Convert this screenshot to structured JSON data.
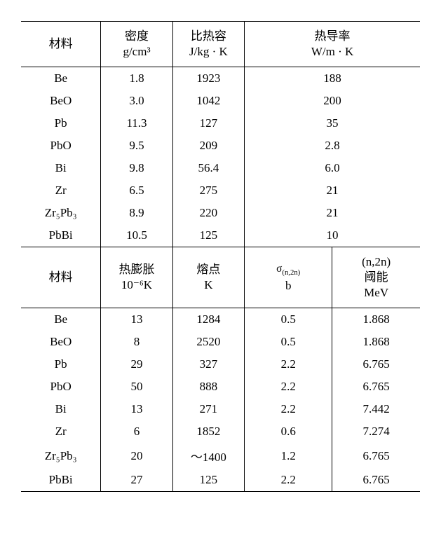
{
  "table1": {
    "headers": {
      "material": "材料",
      "density_l1": "密度",
      "density_l2": "g/cm³",
      "specheat_l1": "比热容",
      "specheat_l2": "J/kg · K",
      "thermcond_l1": "热导率",
      "thermcond_l2": "W/m · K"
    },
    "rows": [
      {
        "m": "Be",
        "c2": "1.8",
        "c3": "1923",
        "c4": "188"
      },
      {
        "m": "BeO",
        "c2": "3.0",
        "c3": "1042",
        "c4": "200"
      },
      {
        "m": "Pb",
        "c2": "11.3",
        "c3": "127",
        "c4": "35"
      },
      {
        "m": "PbO",
        "c2": "9.5",
        "c3": "209",
        "c4": "2.8"
      },
      {
        "m": "Bi",
        "c2": "9.8",
        "c3": "56.4",
        "c4": "6.0"
      },
      {
        "m": "Zr",
        "c2": "6.5",
        "c3": "275",
        "c4": "21"
      },
      {
        "m": "Zr₅Pb₃",
        "c2": "8.9",
        "c3": "220",
        "c4": "21"
      },
      {
        "m": "PbBi",
        "c2": "10.5",
        "c3": "125",
        "c4": "10"
      }
    ]
  },
  "table2": {
    "headers": {
      "material": "材料",
      "thermexp_l1": "热膨胀",
      "thermexp_l2": "10⁻⁶K",
      "meltpt_l1": "熔点",
      "meltpt_l2": "K",
      "sigma_l1": "σ(n,2n)",
      "sigma_l2": "b",
      "threshold_l1": "(n,2n)",
      "threshold_l2": "阈能",
      "threshold_l3": "MeV"
    },
    "rows": [
      {
        "m": "Be",
        "c2": "13",
        "c3": "1284",
        "c4": "0.5",
        "c5": "1.868"
      },
      {
        "m": "BeO",
        "c2": "8",
        "c3": "2520",
        "c4": "0.5",
        "c5": "1.868"
      },
      {
        "m": "Pb",
        "c2": "29",
        "c3": "327",
        "c4": "2.2",
        "c5": "6.765"
      },
      {
        "m": "PbO",
        "c2": "50",
        "c3": "888",
        "c4": "2.2",
        "c5": "6.765"
      },
      {
        "m": "Bi",
        "c2": "13",
        "c3": "271",
        "c4": "2.2",
        "c5": "7.442"
      },
      {
        "m": "Zr",
        "c2": "6",
        "c3": "1852",
        "c4": "0.6",
        "c5": "7.274"
      },
      {
        "m": "Zr₅Pb₃",
        "c2": "20",
        "c3": "～1400",
        "c4": "1.2",
        "c5": "6.765"
      },
      {
        "m": "PbBi",
        "c2": "27",
        "c3": "125",
        "c4": "2.2",
        "c5": "6.765"
      }
    ]
  }
}
